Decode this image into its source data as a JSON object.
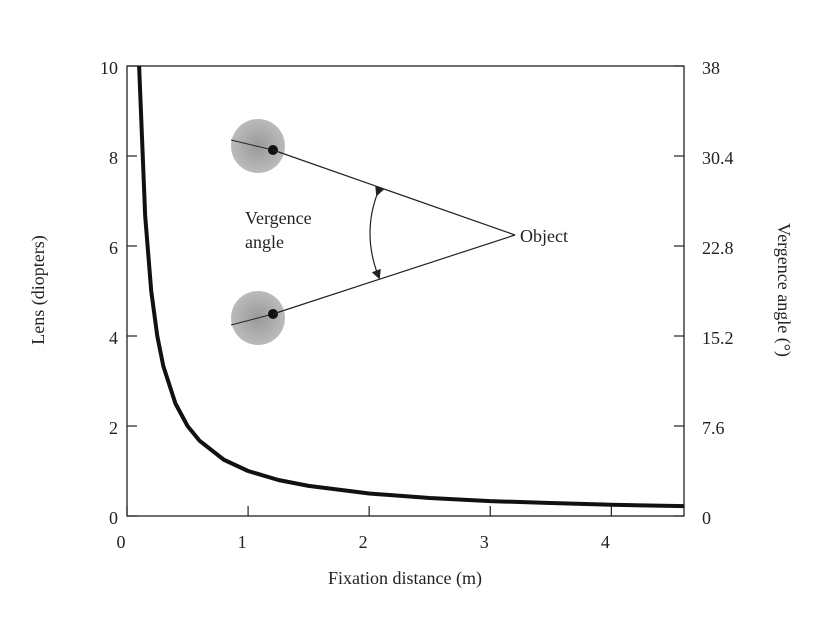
{
  "chart_data": {
    "type": "line",
    "x_label": "Fixation distance (m)",
    "y_label": "Lens (diopters)",
    "y2_label": "Vergence angle (°)",
    "annotations": [
      "Vergence",
      "angle",
      "Object"
    ],
    "x": [
      0.1,
      0.15,
      0.2,
      0.25,
      0.3,
      0.4,
      0.5,
      0.6,
      0.8,
      1,
      1.25,
      1.5,
      2,
      2.5,
      3,
      3.5,
      4,
      4.6
    ],
    "values": [
      10,
      6.67,
      5,
      4,
      3.33,
      2.5,
      2,
      1.67,
      1.25,
      1,
      0.8,
      0.67,
      0.5,
      0.4,
      0.33,
      0.29,
      0.25,
      0.22
    ],
    "color": "#111111",
    "xlim": [
      0,
      4.6
    ],
    "xticks": [
      0,
      1,
      2,
      3,
      4
    ],
    "ylim": [
      0,
      10
    ],
    "yticks": [
      0,
      2,
      4,
      6,
      8,
      10
    ],
    "y2lim": [
      0,
      38
    ],
    "y2ticks": [
      0,
      7.6,
      15.2,
      22.8,
      30.4,
      38
    ]
  }
}
